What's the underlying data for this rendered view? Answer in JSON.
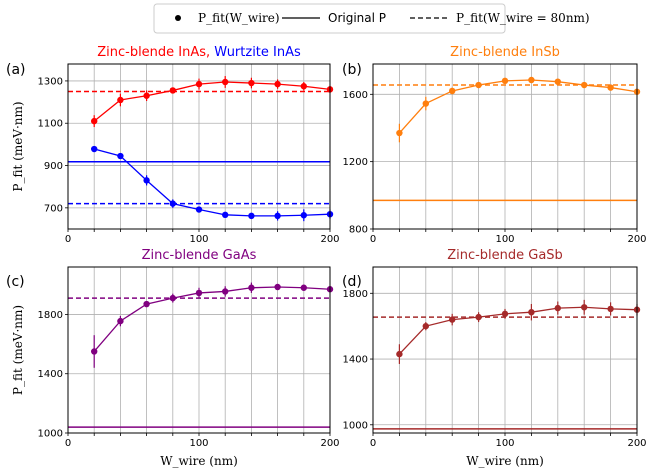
{
  "legend": {
    "items": [
      {
        "label": "P_fit(W_wire)",
        "style": "marker-line"
      },
      {
        "label": "Original P",
        "style": "solid"
      },
      {
        "label": "P_fit(W_wire = 80nm)",
        "style": "dashed"
      }
    ]
  },
  "colors": {
    "inas_zb": "#ff0000",
    "inas_wz": "#0000ff",
    "insb": "#ff7f0e",
    "gaas": "#800080",
    "gasb": "#a52a2a"
  },
  "chart_data": [
    {
      "type": "line",
      "panel_label": "(a)",
      "title_parts": [
        {
          "text": "Zinc-blende InAs,",
          "color": "#ff0000"
        },
        {
          "text": "Wurtzite InAs",
          "color": "#0000ff"
        }
      ],
      "xlabel": "",
      "ylabel": "P_fit (meV·nm)",
      "xlim": [
        0,
        200
      ],
      "ylim": [
        600,
        1380
      ],
      "xticks": [
        0,
        20,
        40,
        60,
        80,
        100,
        120,
        140,
        160,
        180,
        200
      ],
      "xtick_labels": [
        "0",
        "",
        "",
        "",
        "",
        "100",
        "",
        "",
        "",
        "",
        "200"
      ],
      "yticks": [
        700,
        900,
        1100,
        1300
      ],
      "ytick_labels": [
        "700",
        "900",
        "1100",
        "1300"
      ],
      "grid": true,
      "series": [
        {
          "color": "#ff0000",
          "x": [
            20,
            40,
            60,
            80,
            100,
            120,
            140,
            160,
            180,
            200
          ],
          "y": [
            1110,
            1210,
            1230,
            1255,
            1285,
            1295,
            1290,
            1285,
            1275,
            1260
          ],
          "err": [
            28,
            30,
            25,
            14,
            26,
            28,
            25,
            22,
            20,
            16
          ],
          "original": 918,
          "fit80": 1250
        },
        {
          "color": "#0000ff",
          "x": [
            20,
            40,
            60,
            80,
            100,
            120,
            140,
            160,
            180,
            200
          ],
          "y": [
            978,
            945,
            830,
            720,
            692,
            667,
            662,
            662,
            665,
            670
          ],
          "err": [
            6,
            6,
            24,
            20,
            6,
            6,
            10,
            22,
            28,
            22
          ],
          "original": 918,
          "fit80": 720
        }
      ]
    },
    {
      "type": "line",
      "panel_label": "(b)",
      "title_parts": [
        {
          "text": "Zinc-blende InSb",
          "color": "#ff7f0e"
        }
      ],
      "xlabel": "",
      "ylabel": "",
      "xlim": [
        0,
        200
      ],
      "ylim": [
        800,
        1780
      ],
      "xticks": [
        0,
        20,
        40,
        60,
        80,
        100,
        120,
        140,
        160,
        180,
        200
      ],
      "xtick_labels": [
        "0",
        "",
        "",
        "",
        "",
        "100",
        "",
        "",
        "",
        "",
        "200"
      ],
      "yticks": [
        800,
        1200,
        1600
      ],
      "ytick_labels": [
        "800",
        "1200",
        "1600"
      ],
      "grid": true,
      "series": [
        {
          "color": "#ff7f0e",
          "x": [
            20,
            40,
            60,
            80,
            100,
            120,
            140,
            160,
            180,
            200
          ],
          "y": [
            1370,
            1545,
            1620,
            1655,
            1680,
            1685,
            1675,
            1655,
            1640,
            1615
          ],
          "err": [
            55,
            40,
            20,
            10,
            14,
            14,
            12,
            10,
            10,
            10
          ],
          "original": 970,
          "fit80": 1655
        }
      ]
    },
    {
      "type": "line",
      "panel_label": "(c)",
      "title_parts": [
        {
          "text": "Zinc-blende GaAs",
          "color": "#800080"
        }
      ],
      "xlabel": "W_wire (nm)",
      "ylabel": "P_fit (meV·nm)",
      "xlim": [
        0,
        200
      ],
      "ylim": [
        1000,
        2120
      ],
      "xticks": [
        0,
        20,
        40,
        60,
        80,
        100,
        120,
        140,
        160,
        180,
        200
      ],
      "xtick_labels": [
        "0",
        "",
        "",
        "",
        "",
        "100",
        "",
        "",
        "",
        "",
        "200"
      ],
      "yticks": [
        1000,
        1400,
        1800
      ],
      "ytick_labels": [
        "1000",
        "1400",
        "1800"
      ],
      "grid": true,
      "series": [
        {
          "color": "#800080",
          "x": [
            20,
            40,
            60,
            80,
            100,
            120,
            140,
            160,
            180,
            200
          ],
          "y": [
            1550,
            1755,
            1870,
            1910,
            1945,
            1955,
            1980,
            1985,
            1980,
            1970
          ],
          "err": [
            110,
            35,
            20,
            30,
            35,
            35,
            35,
            20,
            10,
            10
          ],
          "original": 1040,
          "fit80": 1910
        }
      ]
    },
    {
      "type": "line",
      "panel_label": "(d)",
      "title_parts": [
        {
          "text": "Zinc-blende GaSb",
          "color": "#a52a2a"
        }
      ],
      "xlabel": "W_wire (nm)",
      "ylabel": "",
      "xlim": [
        0,
        200
      ],
      "ylim": [
        950,
        1960
      ],
      "xticks": [
        0,
        20,
        40,
        60,
        80,
        100,
        120,
        140,
        160,
        180,
        200
      ],
      "xtick_labels": [
        "0",
        "",
        "",
        "",
        "",
        "100",
        "",
        "",
        "",
        "",
        "200"
      ],
      "yticks": [
        1000,
        1400,
        1800
      ],
      "ytick_labels": [
        "1000",
        "1400",
        "1800"
      ],
      "grid": true,
      "series": [
        {
          "color": "#a52a2a",
          "x": [
            20,
            40,
            60,
            80,
            100,
            120,
            140,
            160,
            180,
            200
          ],
          "y": [
            1430,
            1600,
            1640,
            1655,
            1675,
            1685,
            1710,
            1715,
            1705,
            1700
          ],
          "err": [
            60,
            25,
            35,
            30,
            30,
            50,
            40,
            45,
            40,
            35
          ],
          "original": 975,
          "fit80": 1655
        }
      ]
    }
  ]
}
